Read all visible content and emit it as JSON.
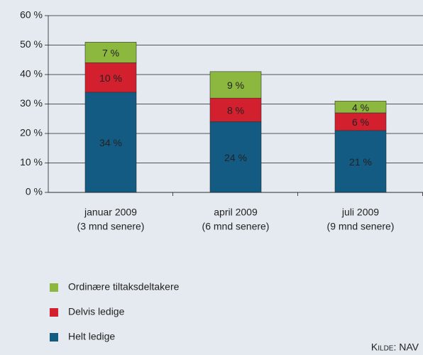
{
  "chart_data": {
    "type": "stacked_bar",
    "categories": [
      [
        "januar 2009",
        "(3 mnd senere)"
      ],
      [
        "april 2009",
        "(6 mnd senere)"
      ],
      [
        "juli 2009",
        "(9 mnd senere)"
      ]
    ],
    "series": [
      {
        "name": "Helt ledige",
        "color": "#135b82",
        "values": [
          34,
          24,
          21
        ],
        "value_labels": [
          "34 %",
          "24 %",
          "21 %"
        ]
      },
      {
        "name": "Delvis ledige",
        "color": "#d3202f",
        "values": [
          10,
          8,
          6
        ],
        "value_labels": [
          "10 %",
          "8 %",
          "6 %"
        ]
      },
      {
        "name": "Ordinære tiltaksdeltakere",
        "color": "#8cb83f",
        "values": [
          7,
          9,
          4
        ],
        "value_labels": [
          "7 %",
          "9 %",
          "4 %"
        ]
      }
    ],
    "ylim": [
      0,
      60
    ],
    "yticks": [
      {
        "value": 0,
        "label": "0 %"
      },
      {
        "value": 10,
        "label": "10 %"
      },
      {
        "value": 20,
        "label": "20 %"
      },
      {
        "value": 30,
        "label": "30 %"
      },
      {
        "value": 40,
        "label": "40 %"
      },
      {
        "value": 50,
        "label": "50 %"
      },
      {
        "value": 60,
        "label": "60 %"
      }
    ],
    "grid": true,
    "source": "Kilde: NAV"
  }
}
